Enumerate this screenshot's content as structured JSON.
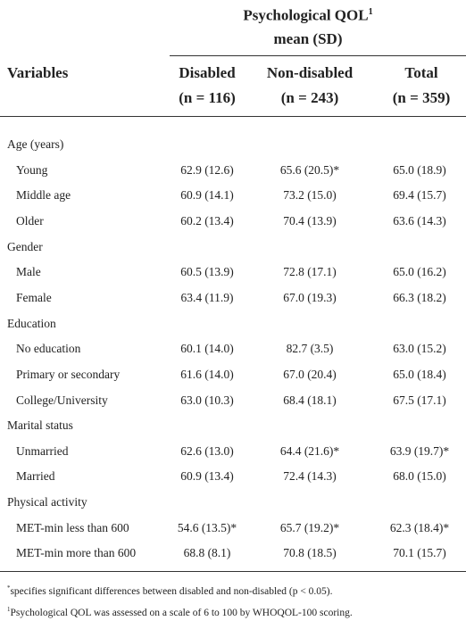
{
  "header": {
    "group_title": "Psychological QOL",
    "group_sup": "1",
    "group_subtitle": "mean (SD)",
    "row_label": "Variables",
    "columns": [
      {
        "name": "Disabled",
        "n": "(n = 116)"
      },
      {
        "name": "Non-disabled",
        "n": "(n = 243)"
      },
      {
        "name": "Total",
        "n": "(n = 359)"
      }
    ]
  },
  "table": {
    "sections": [
      {
        "label": "Age (years)",
        "rows": [
          [
            "Young",
            "62.9 (12.6)",
            "65.6 (20.5)*",
            "65.0 (18.9)"
          ],
          [
            "Middle age",
            "60.9 (14.1)",
            "73.2 (15.0)",
            "69.4 (15.7)"
          ],
          [
            "Older",
            "60.2 (13.4)",
            "70.4 (13.9)",
            "63.6 (14.3)"
          ]
        ]
      },
      {
        "label": "Gender",
        "rows": [
          [
            "Male",
            "60.5 (13.9)",
            "72.8 (17.1)",
            "65.0 (16.2)"
          ],
          [
            "Female",
            "63.4 (11.9)",
            "67.0 (19.3)",
            "66.3 (18.2)"
          ]
        ]
      },
      {
        "label": "Education",
        "rows": [
          [
            "No education",
            "60.1 (14.0)",
            "82.7 (3.5)",
            "63.0 (15.2)"
          ],
          [
            "Primary or secondary",
            "61.6 (14.0)",
            "67.0 (20.4)",
            "65.0 (18.4)"
          ],
          [
            "College/University",
            "63.0 (10.3)",
            "68.4 (18.1)",
            "67.5 (17.1)"
          ]
        ]
      },
      {
        "label": "Marital status",
        "rows": [
          [
            "Unmarried",
            "62.6 (13.0)",
            "64.4 (21.6)*",
            "63.9 (19.7)*"
          ],
          [
            "Married",
            "60.9 (13.4)",
            "72.4 (14.3)",
            "68.0 (15.0)"
          ]
        ]
      },
      {
        "label": "Physical activity",
        "rows": [
          [
            "MET-min less than 600",
            "54.6 (13.5)*",
            "65.7 (19.2)*",
            "62.3 (18.4)*"
          ],
          [
            "MET-min more than 600",
            "68.8 (8.1)",
            "70.8 (18.5)",
            "70.1 (15.7)"
          ]
        ]
      }
    ]
  },
  "footnotes": [
    {
      "marker": "*",
      "text": "specifies significant differences between disabled and non-disabled (p < 0.05)."
    },
    {
      "marker": "1",
      "text": "Psychological QOL was assessed on a scale of 6 to 100 by WHOQOL-100 scoring."
    }
  ]
}
